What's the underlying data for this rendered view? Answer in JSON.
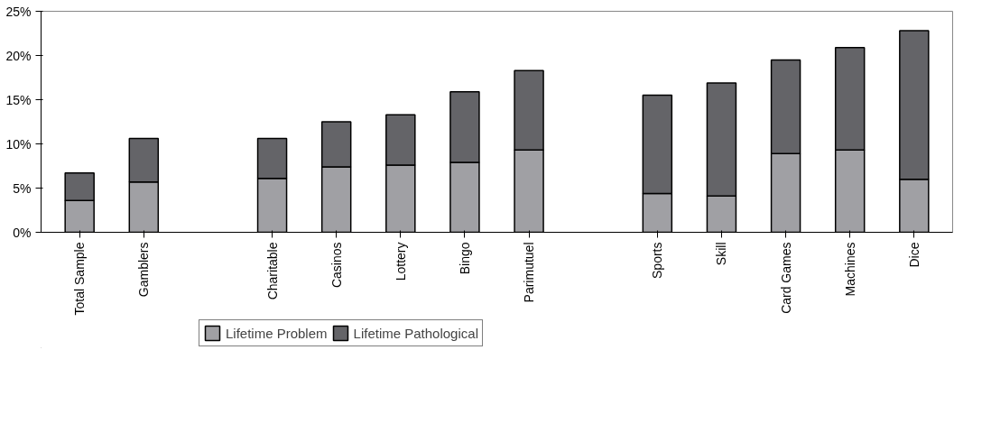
{
  "chart_data": {
    "type": "bar",
    "stacked": true,
    "categories": [
      "Total Sample",
      "Gamblers",
      null,
      "Charitable",
      "Casinos",
      "Lottery",
      "Bingo",
      "Parimutuel",
      null,
      "Sports",
      "Skill",
      "Card Games",
      "Machines",
      "Dice"
    ],
    "series": [
      {
        "name": "Lifetime Problem",
        "color": "#a0a0a4",
        "values": [
          3.6,
          5.7,
          null,
          6.1,
          7.4,
          7.6,
          7.9,
          9.3,
          null,
          4.4,
          4.1,
          8.9,
          9.3,
          6.0
        ]
      },
      {
        "name": "Lifetime Pathological",
        "color": "#646468",
        "values": [
          3.1,
          4.9,
          null,
          4.5,
          5.1,
          5.7,
          8.0,
          9.0,
          null,
          11.1,
          12.8,
          10.6,
          11.6,
          16.8
        ]
      }
    ],
    "ylim": [
      0,
      25
    ],
    "yticks": [
      {
        "value": 0,
        "label": "0%"
      },
      {
        "value": 5,
        "label": "5%"
      },
      {
        "value": 10,
        "label": "10%"
      },
      {
        "value": 15,
        "label": "15%"
      },
      {
        "value": 20,
        "label": "20%"
      },
      {
        "value": 25,
        "label": "25%"
      }
    ],
    "grid": false,
    "legend": "bottom"
  }
}
